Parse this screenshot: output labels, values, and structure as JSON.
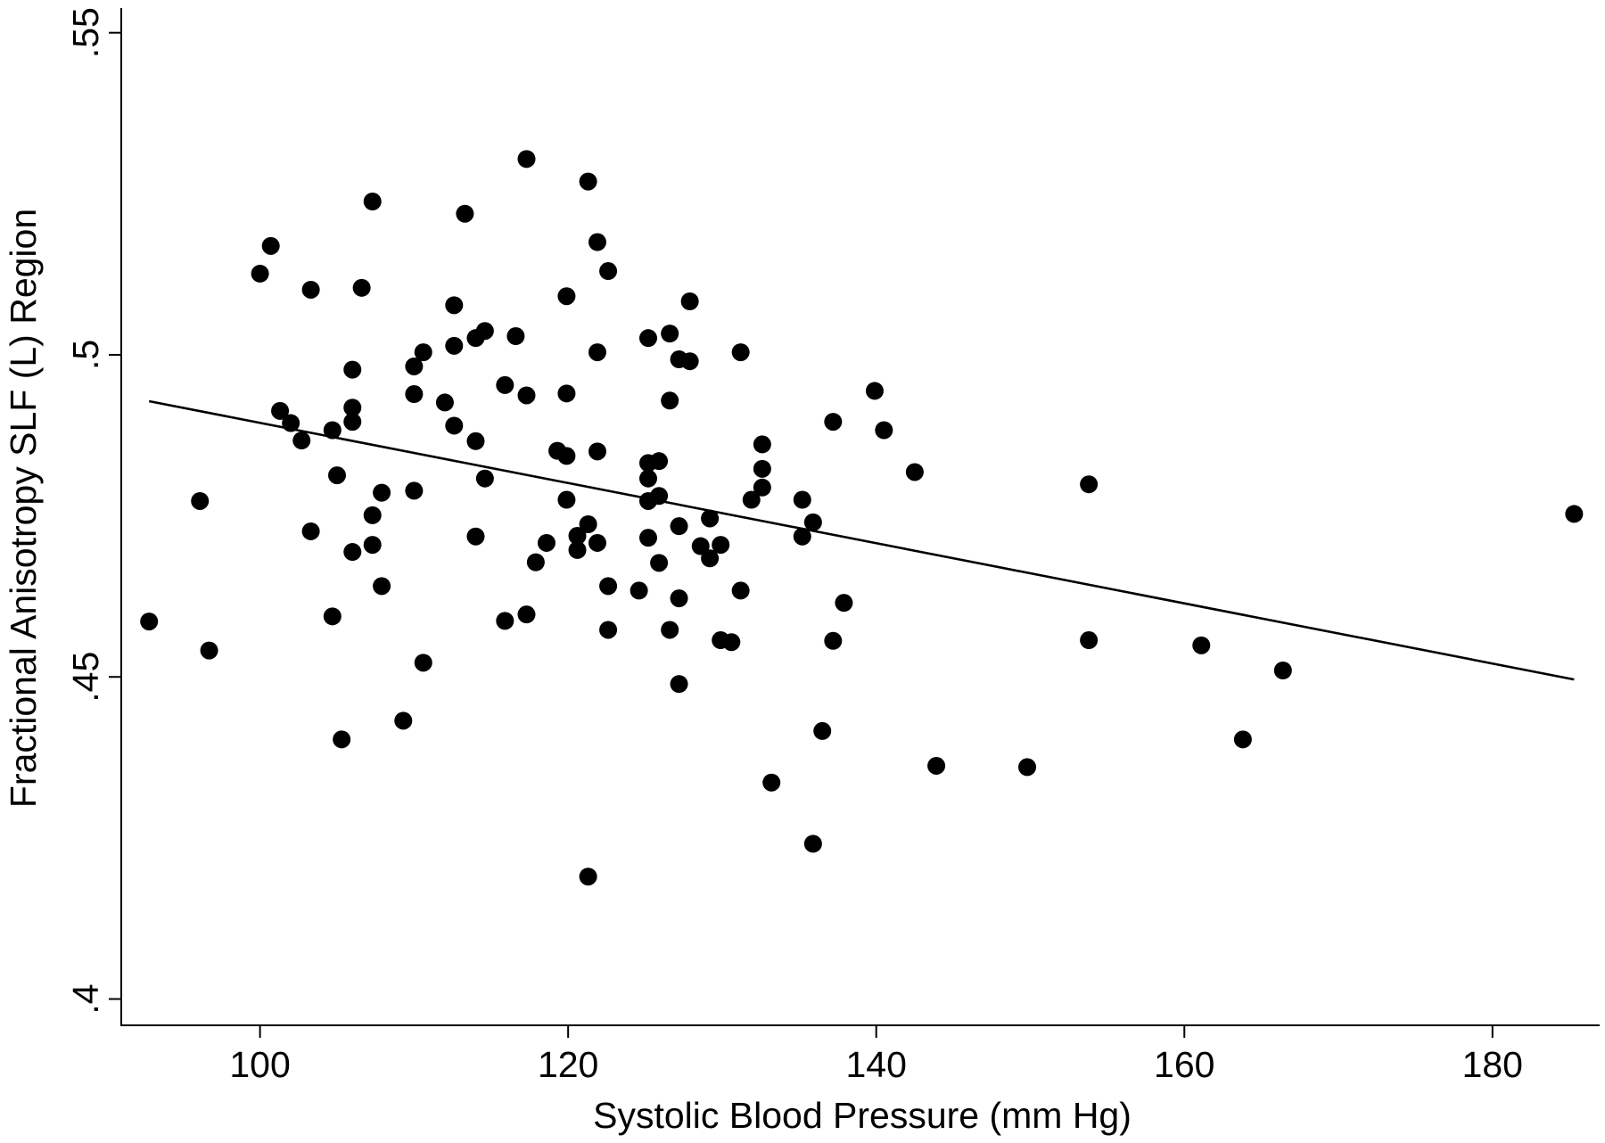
{
  "chart_data": {
    "type": "scatter",
    "title": "",
    "xlabel": "Systolic Blood Pressure (mm Hg)",
    "ylabel": "Fractional Anisotropy SLF (L) Region",
    "xlim": [
      91.5,
      188
    ],
    "ylim": [
      0.396,
      0.555
    ],
    "xticks": [
      100,
      120,
      140,
      160,
      180
    ],
    "xtick_labels": [
      "100",
      "120",
      "140",
      "160",
      "180"
    ],
    "yticks": [
      0.4,
      0.45,
      0.5,
      0.55
    ],
    "ytick_labels": [
      ".4",
      ".45",
      ".5",
      ".55"
    ],
    "grid": false,
    "legend": "none",
    "marker_color": "#000000",
    "fit_line": {
      "x": [
        92.8,
        185.3
      ],
      "y": [
        0.4928,
        0.4496
      ]
    },
    "points": [
      [
        92.8,
        0.4586
      ],
      [
        96.1,
        0.4773
      ],
      [
        96.7,
        0.4541
      ],
      [
        100,
        0.5126
      ],
      [
        100.7,
        0.5169
      ],
      [
        101.3,
        0.4913
      ],
      [
        102,
        0.4894
      ],
      [
        102.7,
        0.4867
      ],
      [
        103.3,
        0.5101
      ],
      [
        103.3,
        0.4726
      ],
      [
        104.7,
        0.4883
      ],
      [
        104.7,
        0.4594
      ],
      [
        105,
        0.4813
      ],
      [
        105.3,
        0.4403
      ],
      [
        106,
        0.4977
      ],
      [
        106,
        0.4918
      ],
      [
        106,
        0.4896
      ],
      [
        106,
        0.4694
      ],
      [
        106.6,
        0.5104
      ],
      [
        107.3,
        0.5238
      ],
      [
        107.3,
        0.4751
      ],
      [
        107.3,
        0.4705
      ],
      [
        107.9,
        0.4786
      ],
      [
        107.9,
        0.4641
      ],
      [
        109.3,
        0.4432
      ],
      [
        110,
        0.4982
      ],
      [
        110,
        0.4939
      ],
      [
        110,
        0.4789
      ],
      [
        110.6,
        0.5004
      ],
      [
        110.6,
        0.4522
      ],
      [
        112,
        0.4926
      ],
      [
        112.6,
        0.5077
      ],
      [
        112.6,
        0.5014
      ],
      [
        112.6,
        0.489
      ],
      [
        113.3,
        0.5219
      ],
      [
        114,
        0.5026
      ],
      [
        114,
        0.4866
      ],
      [
        114,
        0.4718
      ],
      [
        114.6,
        0.5037
      ],
      [
        114.6,
        0.4808
      ],
      [
        115.9,
        0.4953
      ],
      [
        115.9,
        0.4587
      ],
      [
        116.6,
        0.5029
      ],
      [
        117.3,
        0.5304
      ],
      [
        117.3,
        0.4937
      ],
      [
        117.3,
        0.4597
      ],
      [
        117.9,
        0.4678
      ],
      [
        118.6,
        0.4708
      ],
      [
        119.3,
        0.4851
      ],
      [
        119.9,
        0.5091
      ],
      [
        119.9,
        0.494
      ],
      [
        119.9,
        0.4843
      ],
      [
        119.9,
        0.4775
      ],
      [
        120.6,
        0.4719
      ],
      [
        120.6,
        0.4697
      ],
      [
        121.3,
        0.5269
      ],
      [
        121.3,
        0.4737
      ],
      [
        121.3,
        0.419
      ],
      [
        121.9,
        0.5175
      ],
      [
        121.9,
        0.5004
      ],
      [
        121.9,
        0.485
      ],
      [
        121.9,
        0.4708
      ],
      [
        122.6,
        0.513
      ],
      [
        122.6,
        0.4641
      ],
      [
        122.6,
        0.4573
      ],
      [
        124.6,
        0.4634
      ],
      [
        125.2,
        0.5026
      ],
      [
        125.2,
        0.4832
      ],
      [
        125.2,
        0.4808
      ],
      [
        125.2,
        0.4773
      ],
      [
        125.2,
        0.4716
      ],
      [
        125.9,
        0.4835
      ],
      [
        125.9,
        0.4781
      ],
      [
        125.9,
        0.4677
      ],
      [
        126.6,
        0.5033
      ],
      [
        126.6,
        0.4929
      ],
      [
        126.6,
        0.4573
      ],
      [
        127.2,
        0.4993
      ],
      [
        127.2,
        0.4734
      ],
      [
        127.2,
        0.4622
      ],
      [
        127.2,
        0.4489
      ],
      [
        127.9,
        0.5083
      ],
      [
        127.9,
        0.499
      ],
      [
        128.6,
        0.4703
      ],
      [
        129.2,
        0.4746
      ],
      [
        129.2,
        0.4684
      ],
      [
        129.9,
        0.4705
      ],
      [
        129.9,
        0.4557
      ],
      [
        130.6,
        0.4554
      ],
      [
        131.2,
        0.5004
      ],
      [
        131.2,
        0.4634
      ],
      [
        131.9,
        0.4775
      ],
      [
        132.6,
        0.4861
      ],
      [
        132.6,
        0.4823
      ],
      [
        132.6,
        0.4794
      ],
      [
        133.2,
        0.4336
      ],
      [
        135.2,
        0.4775
      ],
      [
        135.2,
        0.4718
      ],
      [
        135.9,
        0.474
      ],
      [
        135.9,
        0.4241
      ],
      [
        136.5,
        0.4416
      ],
      [
        137.2,
        0.4896
      ],
      [
        137.2,
        0.4556
      ],
      [
        137.9,
        0.4615
      ],
      [
        139.9,
        0.4944
      ],
      [
        140.5,
        0.4883
      ],
      [
        142.5,
        0.4818
      ],
      [
        143.9,
        0.4362
      ],
      [
        149.8,
        0.436
      ],
      [
        153.8,
        0.4799
      ],
      [
        153.8,
        0.4557
      ],
      [
        161.1,
        0.4549
      ],
      [
        163.8,
        0.4403
      ],
      [
        166.4,
        0.451
      ],
      [
        185.3,
        0.4753
      ]
    ]
  }
}
